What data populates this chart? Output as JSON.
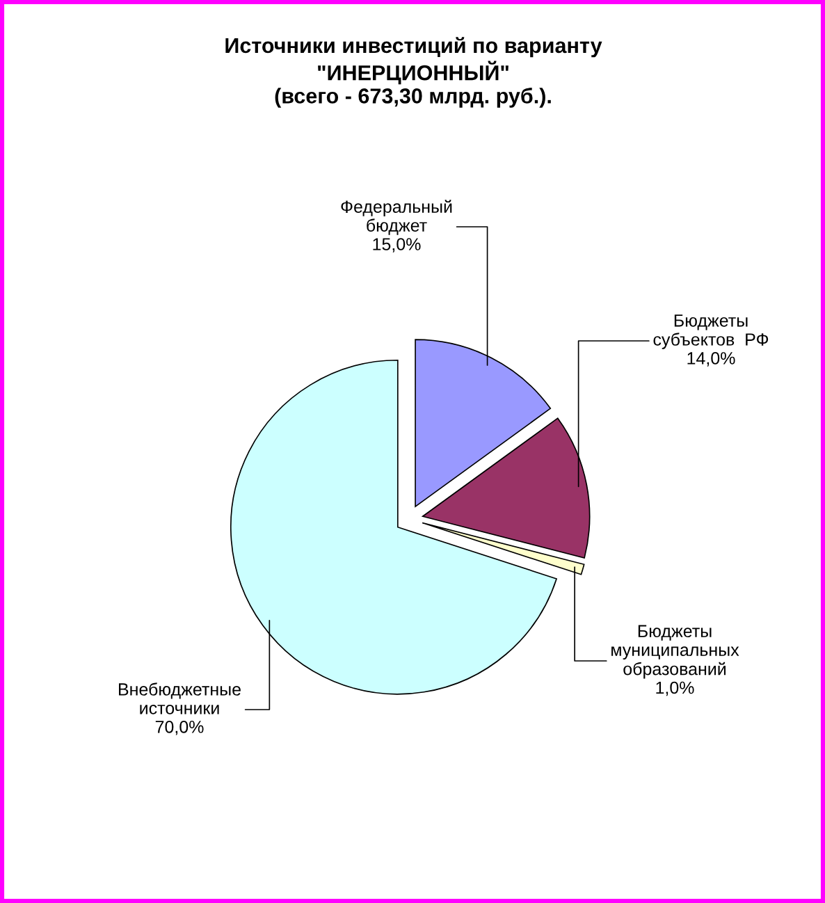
{
  "chart_data": {
    "type": "pie",
    "title": "Источники инвестиций по варианту\n\"ИНЕРЦИОННЫЙ\"\n(всего - 673,30 млрд. руб.).",
    "categories": [
      "Федеральный\nбюджет",
      "Бюджеты\nсубъектов  РФ",
      "Бюджеты\nмуниципальных\nобразований",
      "Внебюджетные\nисточники"
    ],
    "values": [
      15,
      14,
      1,
      70
    ],
    "colors": [
      "#9999ff",
      "#993366",
      "#ffffcc",
      "#ccffff"
    ],
    "value_labels": [
      "15,0%",
      "14,0%",
      "1,0%",
      "70,0%"
    ]
  }
}
